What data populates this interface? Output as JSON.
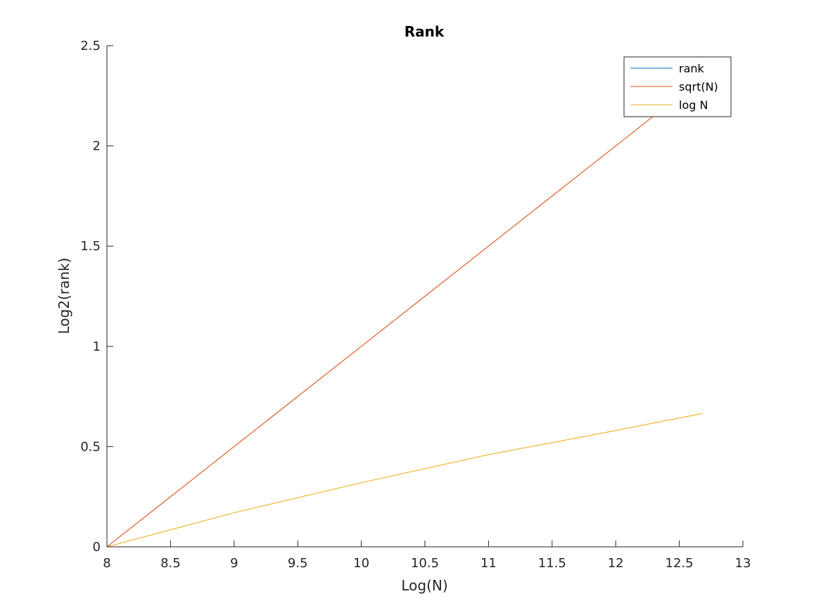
{
  "chart_data": {
    "type": "line",
    "title": "Rank",
    "xlabel": "Log(N)",
    "ylabel": "Log2(rank)",
    "xlim": [
      8,
      13
    ],
    "ylim": [
      0,
      2.5
    ],
    "xticks": [
      8,
      8.5,
      9,
      9.5,
      10,
      10.5,
      11,
      11.5,
      12,
      12.5,
      13
    ],
    "yticks": [
      0,
      0.5,
      1,
      1.5,
      2,
      2.5
    ],
    "grid": false,
    "legend_position": "top-right",
    "series": [
      {
        "name": "rank",
        "color": "#0072BD",
        "x": [
          8,
          12.68
        ],
        "y": [
          0,
          0
        ]
      },
      {
        "name": "sqrt(N)",
        "color": "#D95319",
        "x": [
          8,
          12.68
        ],
        "y": [
          0,
          2.34
        ]
      },
      {
        "name": "log N",
        "color": "#EDB120",
        "x": [
          8,
          9,
          10,
          11,
          12,
          12.68
        ],
        "y": [
          0,
          0.17,
          0.32,
          0.46,
          0.58,
          0.665
        ]
      }
    ]
  }
}
